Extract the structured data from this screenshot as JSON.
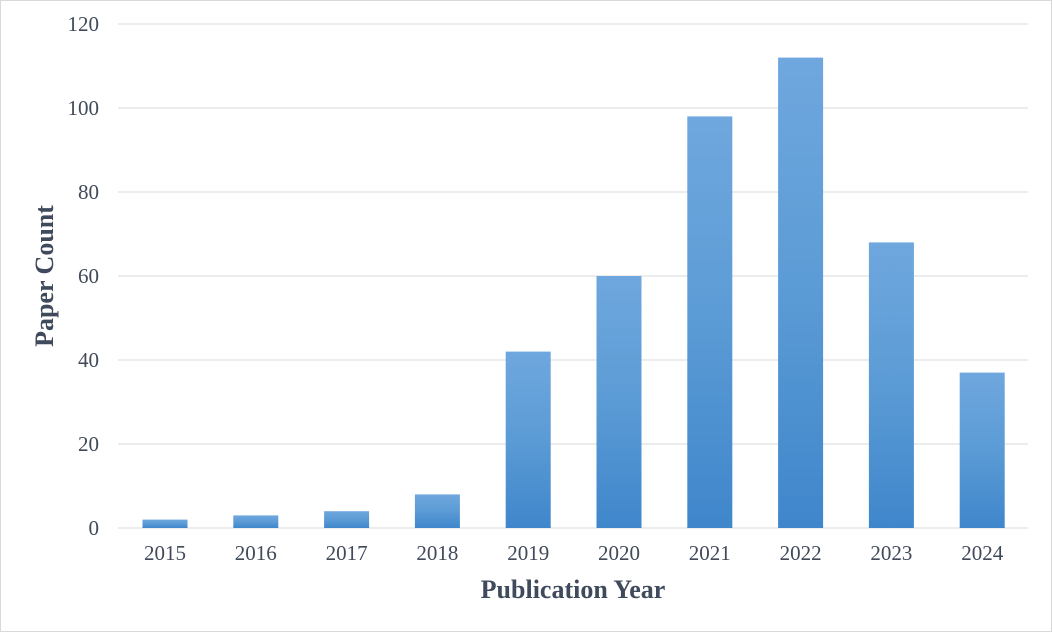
{
  "chart_data": {
    "type": "bar",
    "categories": [
      "2015",
      "2016",
      "2017",
      "2018",
      "2019",
      "2020",
      "2021",
      "2022",
      "2023",
      "2024"
    ],
    "series": [
      {
        "values": [
          2,
          3,
          4,
          8,
          42,
          60,
          98,
          112,
          68,
          37
        ]
      }
    ],
    "xlabel": "Publication Year",
    "ylabel": "Paper Count",
    "ylim": [
      0,
      120
    ],
    "yticks": [
      "0",
      "20",
      "40",
      "60",
      "80",
      "100",
      "120"
    ],
    "grid": true,
    "legend": "none",
    "colors": {
      "bar_top": "#6fa7de",
      "bar_mid": "#5b9bd5",
      "bar_bottom": "#3f86cb",
      "grid": "#d9d9d9",
      "text": "#404a59"
    }
  }
}
